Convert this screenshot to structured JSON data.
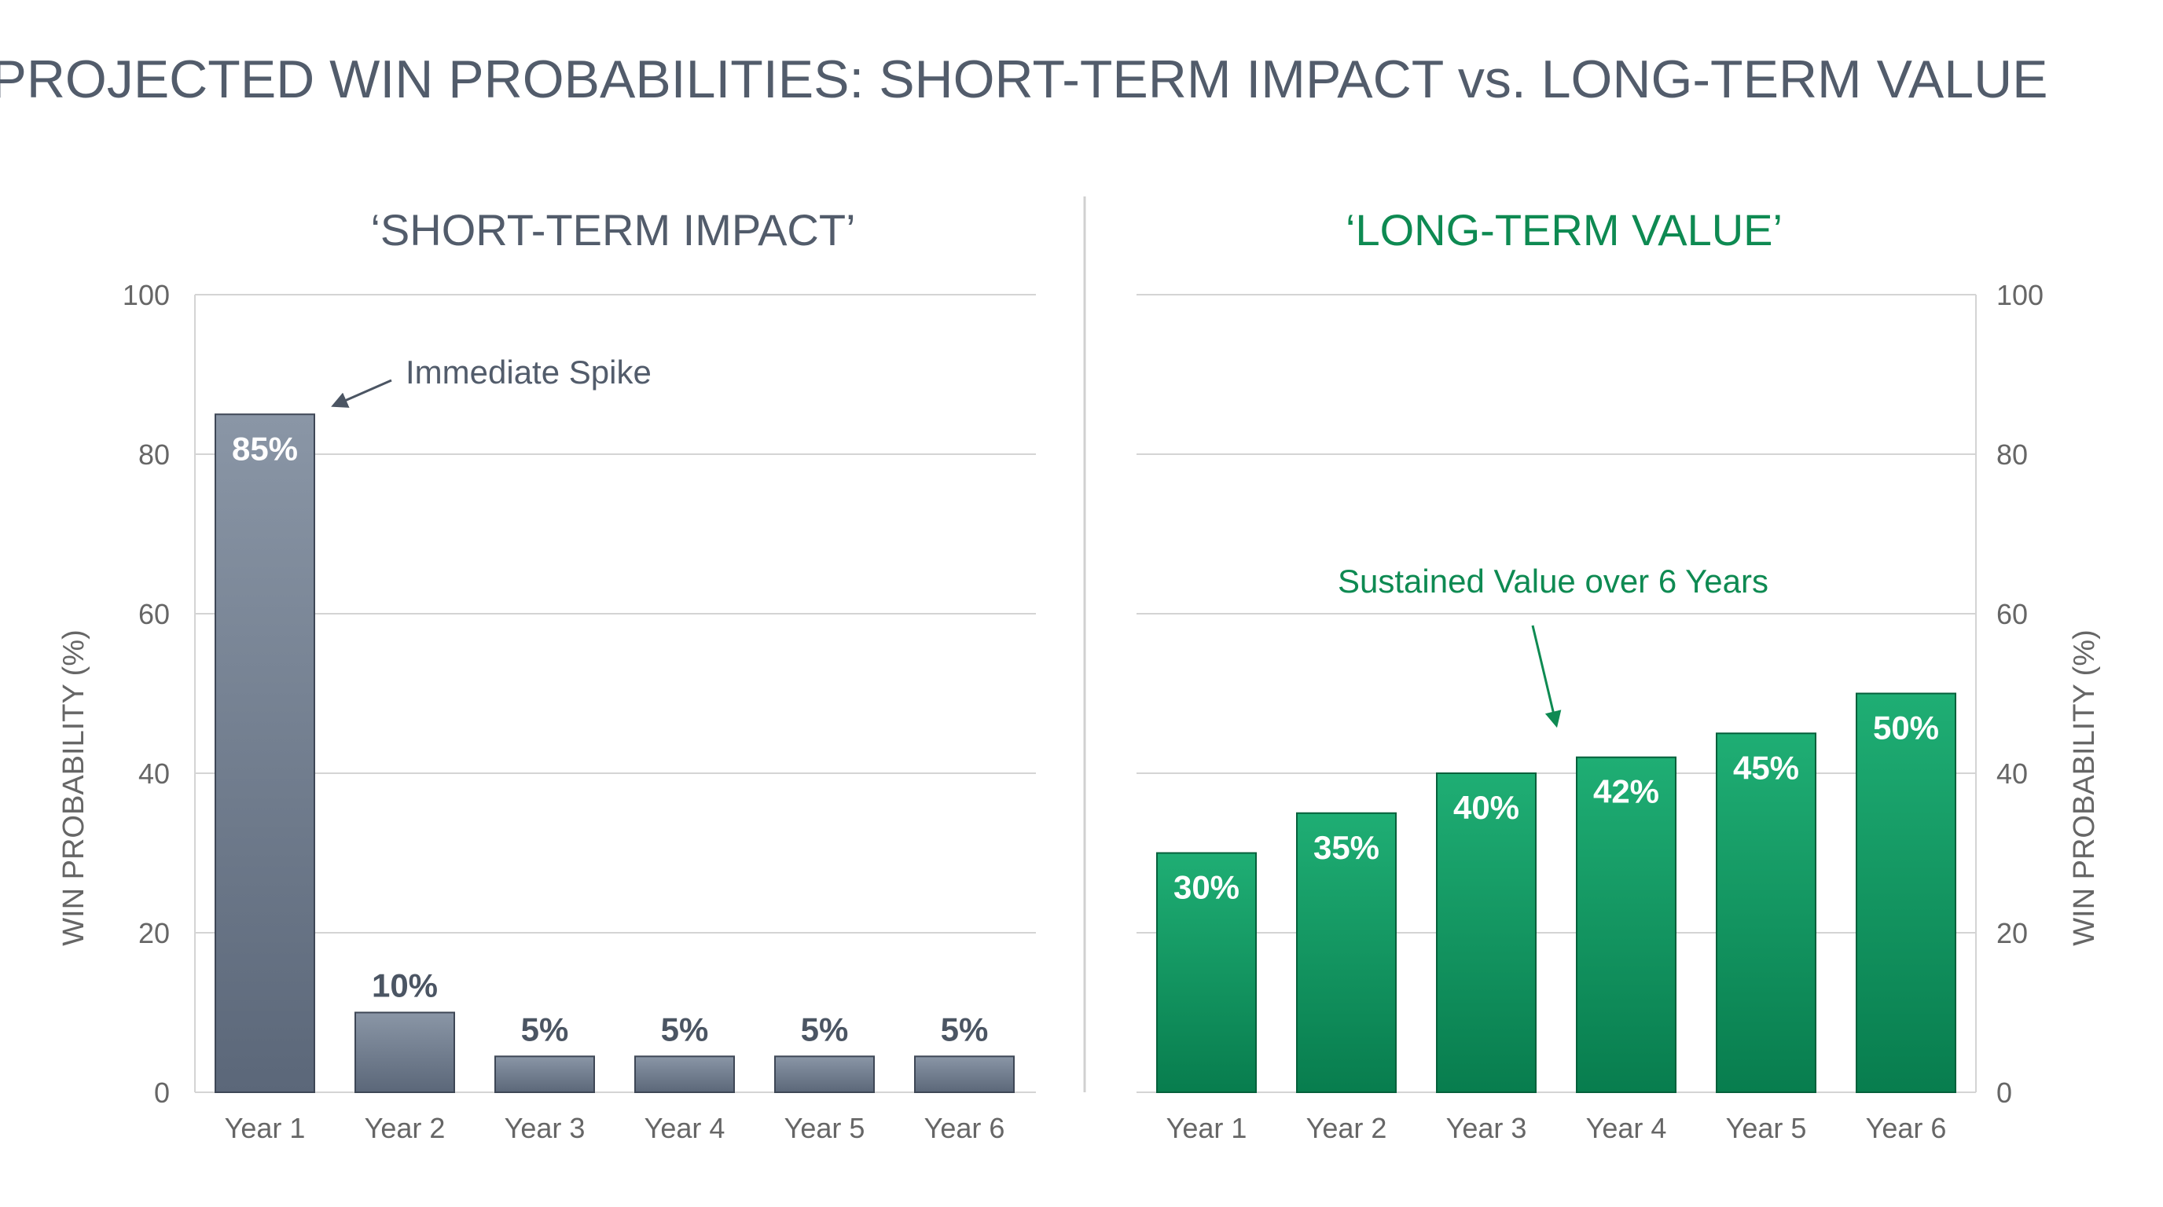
{
  "title": "PROJECTED WIN PROBABILITIES: SHORT-TERM IMPACT vs. LONG-TERM VALUE",
  "colors": {
    "text": "#525c6b",
    "axis_text": "#666666",
    "grid": "#d4d4d4",
    "divider": "#d0d0d0",
    "gray_top": "#8a96a6",
    "gray_bottom": "#5b6779",
    "gray_stroke": "#3e4756",
    "green_top": "#1fae74",
    "green_bottom": "#087d4e",
    "green_stroke": "#05603b",
    "green_text": "#0e8a52",
    "label_white": "#ffffff",
    "label_dark": "#4b5563"
  },
  "chart_data": [
    {
      "type": "bar",
      "title": "‘SHORT-TERM IMPACT’",
      "ylabel": "WIN PROBABILITY (%)",
      "xlabel": "",
      "ylim": [
        0,
        100
      ],
      "yticks": [
        0,
        20,
        40,
        60,
        80,
        100
      ],
      "axis_side": "left",
      "grid": true,
      "categories": [
        "Year 1",
        "Year 2",
        "Year 3",
        "Year 4",
        "Year 5",
        "Year 6"
      ],
      "values": [
        85,
        10,
        4.5,
        4.5,
        4.5,
        4.5
      ],
      "data_labels": [
        "85%",
        "10%",
        "5%",
        "5%",
        "5%",
        "5%"
      ],
      "annotation": "Immediate Spike",
      "color_scheme": "gray"
    },
    {
      "type": "bar",
      "title": "‘LONG-TERM VALUE’",
      "ylabel": "WIN PROBABILITY (%)",
      "xlabel": "",
      "ylim": [
        0,
        100
      ],
      "yticks": [
        0,
        20,
        40,
        60,
        80,
        100
      ],
      "axis_side": "right",
      "grid": true,
      "categories": [
        "Year 1",
        "Year 2",
        "Year 3",
        "Year 4",
        "Year 5",
        "Year 6"
      ],
      "values": [
        30,
        35,
        40,
        42,
        45,
        50
      ],
      "data_labels": [
        "30%",
        "35%",
        "40%",
        "42%",
        "45%",
        "50%"
      ],
      "annotation": "Sustained Value over 6 Years",
      "color_scheme": "green"
    }
  ]
}
